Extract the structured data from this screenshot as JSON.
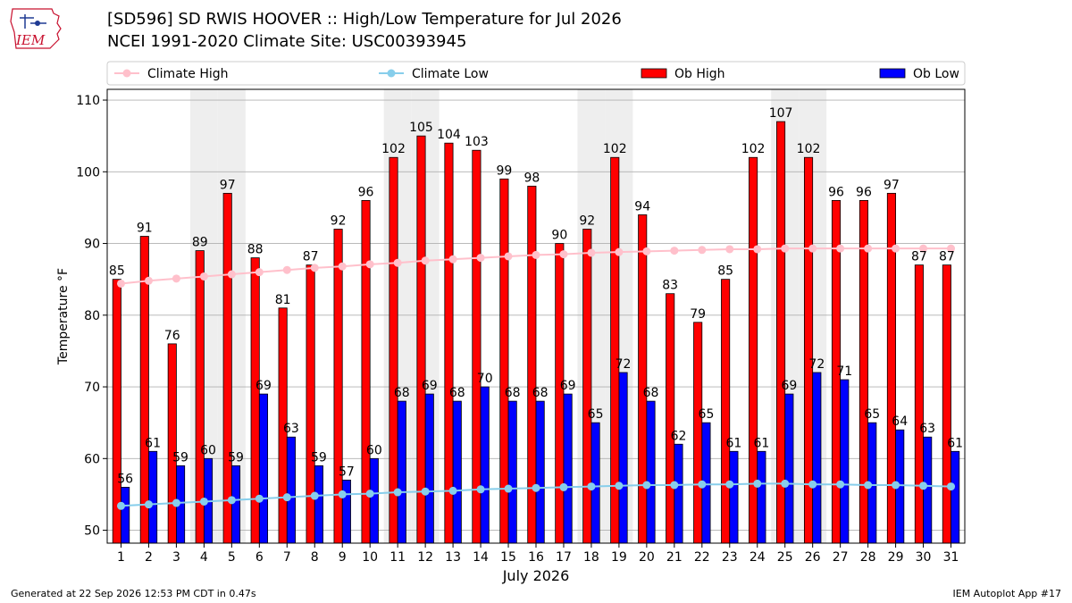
{
  "header": {
    "title_line1": "[SD596] SD RWIS HOOVER :: High/Low Temperature for Jul 2026",
    "title_line2": "NCEI 1991-2020 Climate Site: USC00393945",
    "logo_text": "IEM"
  },
  "footer": {
    "generated": "Generated at 22 Sep 2026 12:53 PM CDT in 0.47s",
    "app": "IEM Autoplot App #17"
  },
  "chart_data": {
    "type": "bar",
    "xlabel": "July 2026",
    "ylabel": "Temperature °F",
    "ylim": [
      48.2,
      111.5
    ],
    "yticks": [
      50,
      60,
      70,
      80,
      90,
      100,
      110
    ],
    "grid": true,
    "legend_position": "top",
    "categories": [
      "1",
      "2",
      "3",
      "4",
      "5",
      "6",
      "7",
      "8",
      "9",
      "10",
      "11",
      "12",
      "13",
      "14",
      "15",
      "16",
      "17",
      "18",
      "19",
      "20",
      "21",
      "22",
      "23",
      "24",
      "25",
      "26",
      "27",
      "28",
      "29",
      "30",
      "31"
    ],
    "weekend_days": [
      4,
      5,
      11,
      12,
      18,
      19,
      25,
      26
    ],
    "series": [
      {
        "name": "Ob High",
        "kind": "bar",
        "color": "#ff0000",
        "values": [
          85,
          91,
          76,
          89,
          97,
          88,
          81,
          87,
          92,
          96,
          102,
          105,
          104,
          103,
          99,
          98,
          90,
          92,
          102,
          94,
          83,
          79,
          85,
          102,
          107,
          102,
          96,
          96,
          97,
          87,
          87
        ]
      },
      {
        "name": "Ob Low",
        "kind": "bar",
        "color": "#0000ff",
        "values": [
          56,
          61,
          59,
          60,
          59,
          69,
          63,
          59,
          57,
          60,
          68,
          69,
          68,
          70,
          68,
          68,
          69,
          65,
          72,
          68,
          62,
          65,
          61,
          61,
          69,
          72,
          71,
          65,
          64,
          63,
          61
        ]
      },
      {
        "name": "Climate High",
        "kind": "line",
        "color": "#ffc0cb",
        "values": [
          84.4,
          84.8,
          85.1,
          85.4,
          85.7,
          86.0,
          86.3,
          86.6,
          86.8,
          87.1,
          87.3,
          87.6,
          87.8,
          88.0,
          88.2,
          88.4,
          88.5,
          88.7,
          88.8,
          88.9,
          89.0,
          89.1,
          89.2,
          89.2,
          89.3,
          89.3,
          89.3,
          89.3,
          89.3,
          89.3,
          89.3
        ]
      },
      {
        "name": "Climate Low",
        "kind": "line",
        "color": "#87ceeb",
        "values": [
          53.4,
          53.6,
          53.8,
          54.0,
          54.2,
          54.4,
          54.6,
          54.8,
          55.0,
          55.1,
          55.3,
          55.4,
          55.5,
          55.7,
          55.8,
          55.9,
          56.0,
          56.1,
          56.2,
          56.3,
          56.3,
          56.4,
          56.4,
          56.5,
          56.5,
          56.4,
          56.4,
          56.3,
          56.3,
          56.2,
          56.1
        ]
      }
    ],
    "legend": [
      "Climate High",
      "Climate Low",
      "Ob High",
      "Ob Low"
    ]
  }
}
